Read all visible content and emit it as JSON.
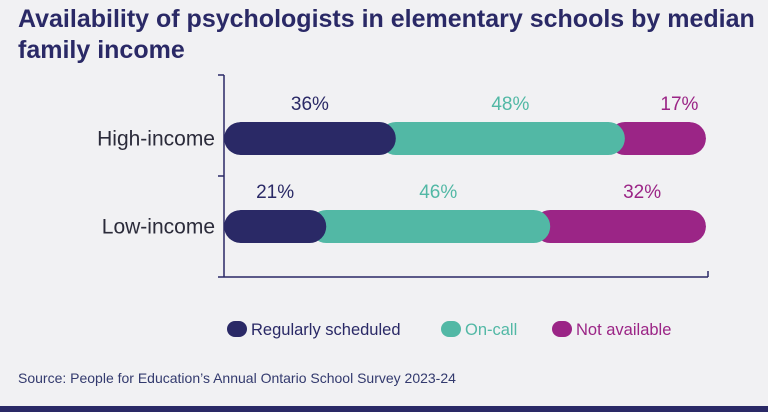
{
  "title": "Availability of psychologists in elementary schools by median family income",
  "source": "Source: People for Education’s Annual Ontario School Survey 2023-24",
  "colors": {
    "background": "#f1f1f3",
    "regularly_scheduled": "#2a2966",
    "on_call": "#52b8a5",
    "not_available": "#9b2586",
    "axis": "#2a2966"
  },
  "chart_data": {
    "type": "bar",
    "orientation": "horizontal",
    "stacked": true,
    "categories": [
      "High-income",
      "Low-income"
    ],
    "series": [
      {
        "name": "Regularly scheduled",
        "values": [
          36,
          21
        ],
        "labels": [
          "36%",
          "21%"
        ],
        "color": "#2a2966"
      },
      {
        "name": "On-call",
        "values": [
          48,
          46
        ],
        "labels": [
          "48%",
          "46%"
        ],
        "color": "#52b8a5"
      },
      {
        "name": "Not available",
        "values": [
          17,
          32
        ],
        "labels": [
          "17%",
          "32%"
        ],
        "color": "#9b2586"
      }
    ],
    "legend_position": "bottom",
    "grid": false
  }
}
